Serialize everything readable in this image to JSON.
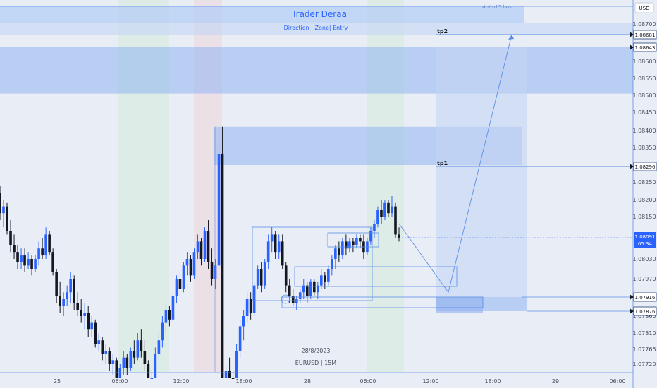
{
  "header": {
    "title": "Trader Deraa",
    "subtitle": "Direction  |  Zone|  Entry",
    "tag": "4h/m15 bos"
  },
  "currency": "USD",
  "watermark": {
    "date": "28/8/2023",
    "symbol": "EURUSD | 15M"
  },
  "colors": {
    "bull": "#2962ff",
    "bear": "#131722",
    "zone": "#90b4f0",
    "line": "#5b8ee6",
    "bg": "#e9edf5"
  },
  "chart_data": {
    "type": "candlestick",
    "symbol": "EURUSD",
    "timeframe": "15M",
    "y_ticks": [
      1.087,
      1.086,
      1.0855,
      1.085,
      1.0845,
      1.084,
      1.0835,
      1.0825,
      1.082,
      1.0815,
      1.0803,
      1.0797,
      1.0786,
      1.0781,
      1.07765,
      1.0772
    ],
    "y_tick_labels": [
      "1.08700",
      "1.08600",
      "1.08550",
      "1.08500",
      "1.08450",
      "1.08400",
      "1.08350",
      "1.08250",
      "1.08200",
      "1.08150",
      "1.08030",
      "1.07970",
      "1.07860",
      "1.07810",
      "1.07765",
      "1.07720"
    ],
    "x_ticks": [
      "25",
      "06:00",
      "12:00",
      "18:00",
      "28",
      "06:00",
      "12:00",
      "18:00",
      "29",
      "06:00"
    ],
    "price_badges": [
      {
        "label": "tp2",
        "price": "1.08681",
        "value": 1.08681
      },
      {
        "label": "",
        "price": "1.08643",
        "value": 1.08643
      },
      {
        "label": "tp1",
        "price": "1.08296",
        "value": 1.08296
      },
      {
        "label": "",
        "price": "1.07916",
        "value": 1.07916
      },
      {
        "label": "",
        "price": "1.07876",
        "value": 1.07876
      }
    ],
    "current_price": {
      "price": "1.08091",
      "countdown": "05:34",
      "value": 1.08091
    },
    "zones": [
      {
        "name": "upper-supply-zone",
        "from": 1.08643,
        "to": 1.08505
      },
      {
        "name": "mid-supply-zone",
        "from": 1.0841,
        "to": 1.083
      },
      {
        "name": "demand-zone",
        "from": 1.07916,
        "to": 1.07876
      }
    ],
    "projection": {
      "start": 1.0813,
      "low": 1.0793,
      "target": 1.08681
    },
    "candles": [
      {
        "o": 1.0822,
        "h": 1.0824,
        "l": 1.0814,
        "c": 1.0816
      },
      {
        "o": 1.0816,
        "h": 1.082,
        "l": 1.0812,
        "c": 1.0818
      },
      {
        "o": 1.0818,
        "h": 1.0819,
        "l": 1.081,
        "c": 1.0811
      },
      {
        "o": 1.0811,
        "h": 1.0814,
        "l": 1.0805,
        "c": 1.0807
      },
      {
        "o": 1.0807,
        "h": 1.081,
        "l": 1.0803,
        "c": 1.0805
      },
      {
        "o": 1.0805,
        "h": 1.0807,
        "l": 1.08,
        "c": 1.0802
      },
      {
        "o": 1.0802,
        "h": 1.0806,
        "l": 1.08,
        "c": 1.0804
      },
      {
        "o": 1.0804,
        "h": 1.0806,
        "l": 1.0799,
        "c": 1.0801
      },
      {
        "o": 1.0801,
        "h": 1.0805,
        "l": 1.08,
        "c": 1.0803
      },
      {
        "o": 1.0803,
        "h": 1.0804,
        "l": 1.0798,
        "c": 1.08
      },
      {
        "o": 1.08,
        "h": 1.0804,
        "l": 1.0799,
        "c": 1.0803
      },
      {
        "o": 1.0803,
        "h": 1.0808,
        "l": 1.0801,
        "c": 1.0806
      },
      {
        "o": 1.0806,
        "h": 1.0809,
        "l": 1.0803,
        "c": 1.0804
      },
      {
        "o": 1.0804,
        "h": 1.0812,
        "l": 1.0803,
        "c": 1.081
      },
      {
        "o": 1.081,
        "h": 1.0811,
        "l": 1.0804,
        "c": 1.0805
      },
      {
        "o": 1.0805,
        "h": 1.0806,
        "l": 1.0798,
        "c": 1.0799
      },
      {
        "o": 1.0799,
        "h": 1.08,
        "l": 1.079,
        "c": 1.0792
      },
      {
        "o": 1.0792,
        "h": 1.0796,
        "l": 1.0787,
        "c": 1.0789
      },
      {
        "o": 1.0789,
        "h": 1.0793,
        "l": 1.0786,
        "c": 1.0791
      },
      {
        "o": 1.0791,
        "h": 1.0795,
        "l": 1.0789,
        "c": 1.0793
      },
      {
        "o": 1.0793,
        "h": 1.0799,
        "l": 1.079,
        "c": 1.0797
      },
      {
        "o": 1.0797,
        "h": 1.0798,
        "l": 1.0788,
        "c": 1.079
      },
      {
        "o": 1.079,
        "h": 1.0793,
        "l": 1.0786,
        "c": 1.0788
      },
      {
        "o": 1.0788,
        "h": 1.0791,
        "l": 1.0784,
        "c": 1.0786
      },
      {
        "o": 1.0786,
        "h": 1.079,
        "l": 1.0782,
        "c": 1.0787
      },
      {
        "o": 1.0787,
        "h": 1.0789,
        "l": 1.078,
        "c": 1.0782
      },
      {
        "o": 1.0782,
        "h": 1.0786,
        "l": 1.078,
        "c": 1.0784
      },
      {
        "o": 1.0784,
        "h": 1.0785,
        "l": 1.0777,
        "c": 1.0778
      },
      {
        "o": 1.0778,
        "h": 1.0781,
        "l": 1.0776,
        "c": 1.0779
      },
      {
        "o": 1.0779,
        "h": 1.078,
        "l": 1.0773,
        "c": 1.0775
      },
      {
        "o": 1.0775,
        "h": 1.0778,
        "l": 1.0772,
        "c": 1.0776
      },
      {
        "o": 1.0776,
        "h": 1.0777,
        "l": 1.077,
        "c": 1.0772
      },
      {
        "o": 1.0772,
        "h": 1.0775,
        "l": 1.0769,
        "c": 1.0773
      },
      {
        "o": 1.0773,
        "h": 1.0774,
        "l": 1.0766,
        "c": 1.0768
      },
      {
        "o": 1.0768,
        "h": 1.0772,
        "l": 1.0766,
        "c": 1.0771
      },
      {
        "o": 1.0771,
        "h": 1.0776,
        "l": 1.0769,
        "c": 1.0774
      },
      {
        "o": 1.0774,
        "h": 1.0775,
        "l": 1.0769,
        "c": 1.0771
      },
      {
        "o": 1.0771,
        "h": 1.0777,
        "l": 1.077,
        "c": 1.0776
      },
      {
        "o": 1.0776,
        "h": 1.0779,
        "l": 1.0772,
        "c": 1.0774
      },
      {
        "o": 1.0774,
        "h": 1.0781,
        "l": 1.0773,
        "c": 1.0779
      },
      {
        "o": 1.0779,
        "h": 1.0782,
        "l": 1.0774,
        "c": 1.0776
      },
      {
        "o": 1.0776,
        "h": 1.0779,
        "l": 1.077,
        "c": 1.0772
      },
      {
        "o": 1.0772,
        "h": 1.0773,
        "l": 1.076,
        "c": 1.0762
      },
      {
        "o": 1.0762,
        "h": 1.077,
        "l": 1.0759,
        "c": 1.0768
      },
      {
        "o": 1.0768,
        "h": 1.0777,
        "l": 1.0766,
        "c": 1.0775
      },
      {
        "o": 1.0775,
        "h": 1.0781,
        "l": 1.0773,
        "c": 1.0779
      },
      {
        "o": 1.0779,
        "h": 1.0786,
        "l": 1.0777,
        "c": 1.0784
      },
      {
        "o": 1.0784,
        "h": 1.079,
        "l": 1.0781,
        "c": 1.0788
      },
      {
        "o": 1.0788,
        "h": 1.0789,
        "l": 1.0783,
        "c": 1.0785
      },
      {
        "o": 1.0785,
        "h": 1.0793,
        "l": 1.0784,
        "c": 1.0792
      },
      {
        "o": 1.0792,
        "h": 1.0798,
        "l": 1.079,
        "c": 1.0797
      },
      {
        "o": 1.0797,
        "h": 1.0799,
        "l": 1.0792,
        "c": 1.0794
      },
      {
        "o": 1.0794,
        "h": 1.0802,
        "l": 1.0793,
        "c": 1.0801
      },
      {
        "o": 1.0801,
        "h": 1.0805,
        "l": 1.0798,
        "c": 1.0803
      },
      {
        "o": 1.0803,
        "h": 1.0804,
        "l": 1.0796,
        "c": 1.0798
      },
      {
        "o": 1.0798,
        "h": 1.0806,
        "l": 1.0797,
        "c": 1.0805
      },
      {
        "o": 1.0805,
        "h": 1.081,
        "l": 1.0803,
        "c": 1.0808
      },
      {
        "o": 1.0808,
        "h": 1.0809,
        "l": 1.0801,
        "c": 1.0803
      },
      {
        "o": 1.0803,
        "h": 1.0812,
        "l": 1.0802,
        "c": 1.0811
      },
      {
        "o": 1.0811,
        "h": 1.0814,
        "l": 1.08,
        "c": 1.0802
      },
      {
        "o": 1.0802,
        "h": 1.0806,
        "l": 1.0795,
        "c": 1.0797
      },
      {
        "o": 1.0797,
        "h": 1.0803,
        "l": 1.0794,
        "c": 1.0801
      },
      {
        "o": 1.0801,
        "h": 1.0835,
        "l": 1.08,
        "c": 1.0833
      },
      {
        "o": 1.0833,
        "h": 1.0841,
        "l": 1.0765,
        "c": 1.0768
      },
      {
        "o": 1.0768,
        "h": 1.0772,
        "l": 1.0762,
        "c": 1.077
      },
      {
        "o": 1.077,
        "h": 1.0774,
        "l": 1.0763,
        "c": 1.0766
      },
      {
        "o": 1.0766,
        "h": 1.077,
        "l": 1.0758,
        "c": 1.0762
      },
      {
        "o": 1.0762,
        "h": 1.0778,
        "l": 1.076,
        "c": 1.0776
      },
      {
        "o": 1.0776,
        "h": 1.0785,
        "l": 1.0774,
        "c": 1.0783
      },
      {
        "o": 1.0783,
        "h": 1.0788,
        "l": 1.0779,
        "c": 1.0786
      },
      {
        "o": 1.0786,
        "h": 1.0793,
        "l": 1.0784,
        "c": 1.0791
      },
      {
        "o": 1.0791,
        "h": 1.0793,
        "l": 1.0785,
        "c": 1.0787
      },
      {
        "o": 1.0787,
        "h": 1.0796,
        "l": 1.0786,
        "c": 1.0795
      },
      {
        "o": 1.0795,
        "h": 1.0801,
        "l": 1.0794,
        "c": 1.08
      },
      {
        "o": 1.08,
        "h": 1.0802,
        "l": 1.0793,
        "c": 1.0795
      },
      {
        "o": 1.0795,
        "h": 1.0803,
        "l": 1.0794,
        "c": 1.0802
      },
      {
        "o": 1.0802,
        "h": 1.081,
        "l": 1.08,
        "c": 1.0808
      },
      {
        "o": 1.0808,
        "h": 1.0812,
        "l": 1.0805,
        "c": 1.081
      },
      {
        "o": 1.081,
        "h": 1.0811,
        "l": 1.0803,
        "c": 1.0805
      },
      {
        "o": 1.0805,
        "h": 1.081,
        "l": 1.0803,
        "c": 1.0808
      },
      {
        "o": 1.0808,
        "h": 1.081,
        "l": 1.08,
        "c": 1.0801
      },
      {
        "o": 1.0801,
        "h": 1.0802,
        "l": 1.0793,
        "c": 1.0795
      },
      {
        "o": 1.0795,
        "h": 1.0797,
        "l": 1.079,
        "c": 1.0792
      },
      {
        "o": 1.0792,
        "h": 1.0794,
        "l": 1.0789,
        "c": 1.079
      },
      {
        "o": 1.079,
        "h": 1.0792,
        "l": 1.0788,
        "c": 1.0791
      },
      {
        "o": 1.0791,
        "h": 1.0794,
        "l": 1.079,
        "c": 1.0793
      },
      {
        "o": 1.0793,
        "h": 1.0797,
        "l": 1.0791,
        "c": 1.0795
      },
      {
        "o": 1.0795,
        "h": 1.0796,
        "l": 1.079,
        "c": 1.0792
      },
      {
        "o": 1.0792,
        "h": 1.0797,
        "l": 1.0791,
        "c": 1.0796
      },
      {
        "o": 1.0796,
        "h": 1.0797,
        "l": 1.0792,
        "c": 1.0793
      },
      {
        "o": 1.0793,
        "h": 1.0796,
        "l": 1.0791,
        "c": 1.0795
      },
      {
        "o": 1.0795,
        "h": 1.08,
        "l": 1.0794,
        "c": 1.0798
      },
      {
        "o": 1.0798,
        "h": 1.0799,
        "l": 1.0794,
        "c": 1.0796
      },
      {
        "o": 1.0796,
        "h": 1.0801,
        "l": 1.0795,
        "c": 1.08
      },
      {
        "o": 1.08,
        "h": 1.0804,
        "l": 1.0798,
        "c": 1.0803
      },
      {
        "o": 1.0803,
        "h": 1.0807,
        "l": 1.08,
        "c": 1.0806
      },
      {
        "o": 1.0806,
        "h": 1.0808,
        "l": 1.0802,
        "c": 1.0804
      },
      {
        "o": 1.0804,
        "h": 1.0809,
        "l": 1.0803,
        "c": 1.0808
      },
      {
        "o": 1.0808,
        "h": 1.081,
        "l": 1.0804,
        "c": 1.0806
      },
      {
        "o": 1.0806,
        "h": 1.0809,
        "l": 1.0805,
        "c": 1.0808
      },
      {
        "o": 1.0808,
        "h": 1.0809,
        "l": 1.0805,
        "c": 1.0807
      },
      {
        "o": 1.0807,
        "h": 1.081,
        "l": 1.0806,
        "c": 1.0809
      },
      {
        "o": 1.0809,
        "h": 1.081,
        "l": 1.0806,
        "c": 1.0808
      },
      {
        "o": 1.0808,
        "h": 1.081,
        "l": 1.0803,
        "c": 1.0805
      },
      {
        "o": 1.0805,
        "h": 1.0809,
        "l": 1.0804,
        "c": 1.0808
      },
      {
        "o": 1.0808,
        "h": 1.0812,
        "l": 1.0807,
        "c": 1.0811
      },
      {
        "o": 1.0811,
        "h": 1.0814,
        "l": 1.0809,
        "c": 1.0813
      },
      {
        "o": 1.0813,
        "h": 1.0818,
        "l": 1.0812,
        "c": 1.0817
      },
      {
        "o": 1.0817,
        "h": 1.082,
        "l": 1.0813,
        "c": 1.0815
      },
      {
        "o": 1.0815,
        "h": 1.082,
        "l": 1.0814,
        "c": 1.0819
      },
      {
        "o": 1.0819,
        "h": 1.082,
        "l": 1.0815,
        "c": 1.0816
      },
      {
        "o": 1.0816,
        "h": 1.0821,
        "l": 1.0815,
        "c": 1.0818
      },
      {
        "o": 1.0818,
        "h": 1.0819,
        "l": 1.0809,
        "c": 1.081
      },
      {
        "o": 1.081,
        "h": 1.0812,
        "l": 1.0808,
        "c": 1.0809
      }
    ]
  }
}
